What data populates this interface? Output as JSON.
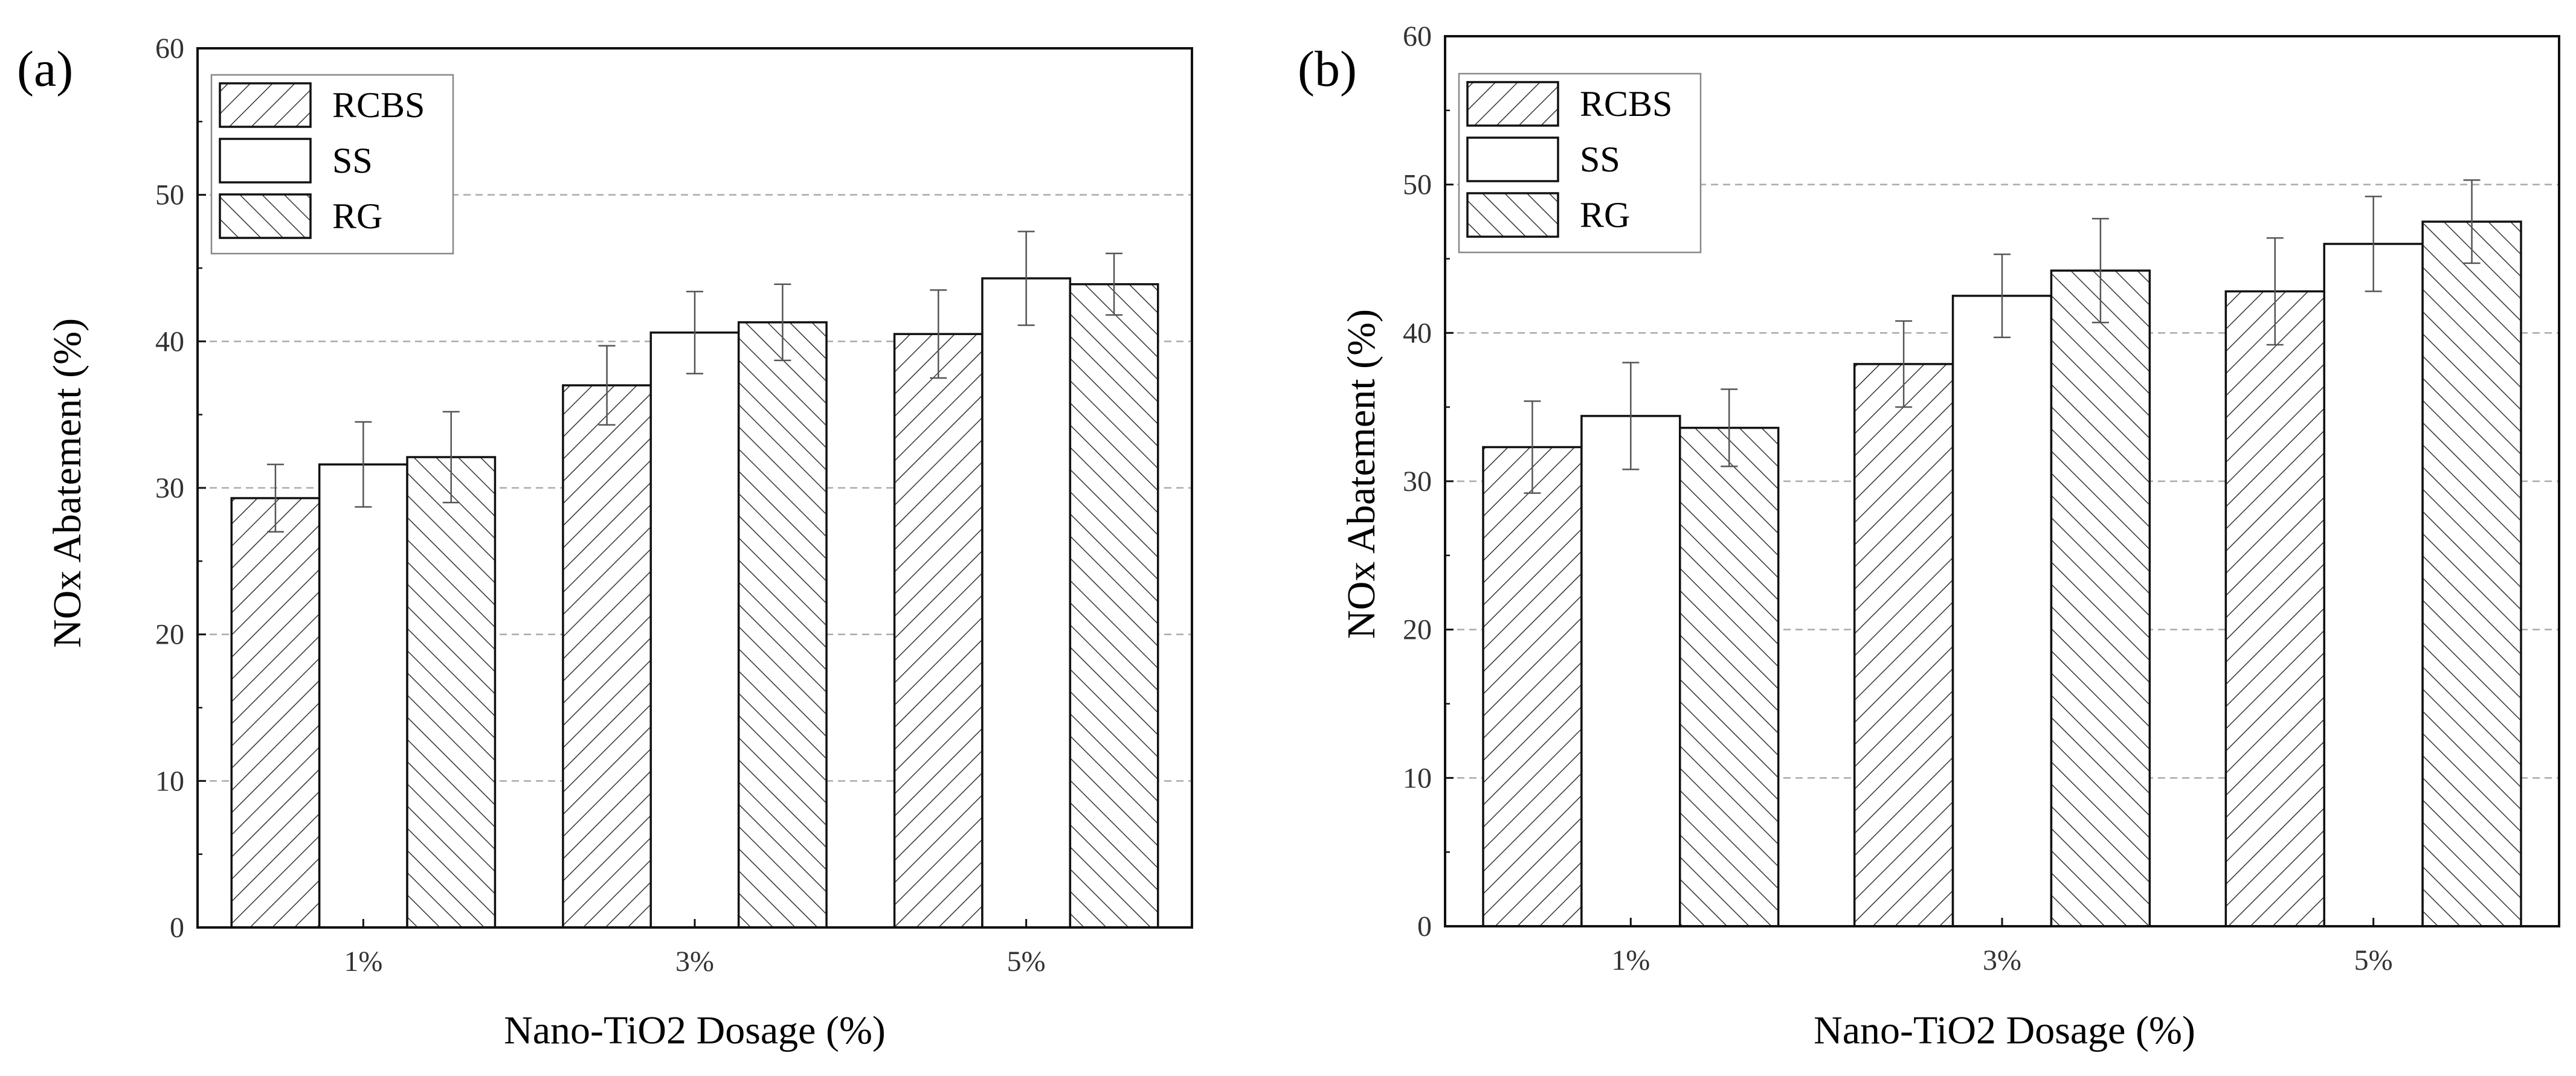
{
  "figure": {
    "panels": [
      {
        "id": "a",
        "label": "(a)"
      },
      {
        "id": "b",
        "label": "(b)"
      }
    ]
  },
  "chart_data": [
    {
      "type": "bar",
      "panel_label": "(a)",
      "title": "",
      "xlabel": "Nano-TiO2 Dosage (%)",
      "ylabel": "NOx Abatement (%)",
      "ylim": [
        0,
        60
      ],
      "yticks": [
        0,
        10,
        20,
        30,
        40,
        50,
        60
      ],
      "grid": true,
      "legend": "top-left",
      "categories": [
        "1%",
        "3%",
        "5%"
      ],
      "series": [
        {
          "name": "RCBS",
          "pattern": "hatch-right",
          "values": [
            29.3,
            37.0,
            40.5
          ],
          "errors": [
            2.3,
            2.7,
            3.0
          ]
        },
        {
          "name": "SS",
          "pattern": "none",
          "values": [
            31.6,
            40.6,
            44.3
          ],
          "errors": [
            2.9,
            2.8,
            3.2
          ]
        },
        {
          "name": "RG",
          "pattern": "hatch-left",
          "values": [
            32.1,
            41.3,
            43.9
          ],
          "errors": [
            3.1,
            2.6,
            2.1
          ]
        }
      ]
    },
    {
      "type": "bar",
      "panel_label": "(b)",
      "title": "",
      "xlabel": "Nano-TiO2 Dosage (%)",
      "ylabel": "NOx Abatement (%)",
      "ylim": [
        0,
        60
      ],
      "yticks": [
        0,
        10,
        20,
        30,
        40,
        50,
        60
      ],
      "grid": true,
      "legend": "top-left",
      "categories": [
        "1%",
        "3%",
        "5%"
      ],
      "series": [
        {
          "name": "RCBS",
          "pattern": "hatch-right",
          "values": [
            32.3,
            37.9,
            42.8
          ],
          "errors": [
            3.1,
            2.9,
            3.6
          ]
        },
        {
          "name": "SS",
          "pattern": "none",
          "values": [
            34.4,
            42.5,
            46.0
          ],
          "errors": [
            3.6,
            2.8,
            3.2
          ]
        },
        {
          "name": "RG",
          "pattern": "hatch-left",
          "values": [
            33.6,
            44.2,
            47.5
          ],
          "errors": [
            2.6,
            3.5,
            2.8
          ]
        }
      ]
    }
  ]
}
